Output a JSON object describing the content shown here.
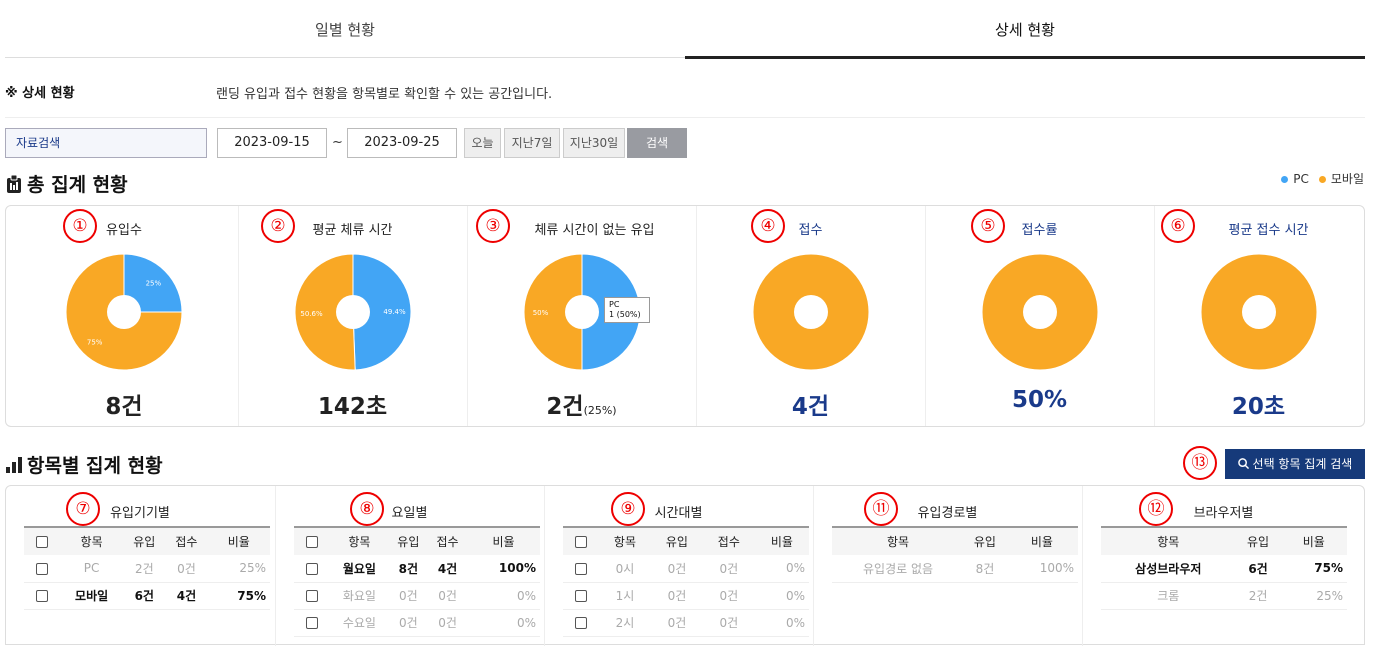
{
  "tabs": [
    "일별 현황",
    "상세 현황"
  ],
  "desc": {
    "title": "※ 상세 현황",
    "text": "랜딩 유입과 접수 현황을 항목별로 확인할 수 있는 공간입니다."
  },
  "search": {
    "value": "자료검색",
    "date_from": "2023-09-15",
    "tilde": "~",
    "date_to": "2023-09-25",
    "quick": [
      "오늘",
      "지난7일",
      "지난30일"
    ],
    "button": "검색"
  },
  "summary": {
    "title": "총 집계 현황",
    "legend": [
      {
        "label": "PC",
        "color": "#42a5f5"
      },
      {
        "label": "모바일",
        "color": "#f9a825"
      }
    ],
    "cards": [
      {
        "num": "①",
        "title": "유입수",
        "value": "8건",
        "suffix": ""
      },
      {
        "num": "②",
        "title": "평균 체류 시간",
        "value": "142초",
        "suffix": ""
      },
      {
        "num": "③",
        "title": "체류 시간이 없는 유입",
        "value": "2건",
        "suffix": "(25%)"
      },
      {
        "num": "④",
        "title": "접수",
        "value": "4건",
        "suffix": ""
      },
      {
        "num": "⑤",
        "title": "접수률",
        "value": "50%",
        "suffix": ""
      },
      {
        "num": "⑥",
        "title": "평균 접수 시간",
        "value": "20초",
        "suffix": ""
      }
    ],
    "tooltip": {
      "line1": "PC",
      "line2": "1 (50%)"
    }
  },
  "chart_data": [
    {
      "type": "pie",
      "title": "유입수",
      "categories": [
        "PC",
        "모바일"
      ],
      "values": [
        25,
        75
      ],
      "labels": [
        "25%",
        "75%"
      ]
    },
    {
      "type": "pie",
      "title": "평균 체류 시간",
      "categories": [
        "PC",
        "모바일"
      ],
      "values": [
        49.4,
        50.6
      ],
      "labels": [
        "49.4%",
        "50.6%"
      ]
    },
    {
      "type": "pie",
      "title": "체류 시간이 없는 유입",
      "categories": [
        "PC",
        "모바일"
      ],
      "values": [
        50,
        50
      ],
      "labels": [
        "",
        "50%"
      ]
    },
    {
      "type": "pie",
      "title": "접수",
      "categories": [
        "PC",
        "모바일"
      ],
      "values": [
        0,
        100
      ],
      "labels": [
        "",
        ""
      ]
    },
    {
      "type": "pie",
      "title": "접수률",
      "categories": [
        "PC",
        "모바일"
      ],
      "values": [
        0,
        100
      ],
      "labels": [
        "",
        ""
      ]
    },
    {
      "type": "pie",
      "title": "평균 접수 시간",
      "categories": [
        "PC",
        "모바일"
      ],
      "values": [
        0,
        100
      ],
      "labels": [
        "",
        ""
      ]
    }
  ],
  "detail": {
    "title": "항목별 집계 현황",
    "agg_button": "선택 항목 집계 검색",
    "agg_num": "⑬",
    "blocks": [
      {
        "num": "⑦",
        "title": "유입기기별",
        "headers": [
          "",
          "항목",
          "유입",
          "접수",
          "비율"
        ],
        "rows": [
          [
            "PC",
            "2건",
            "0건",
            "25%"
          ],
          [
            "모바일",
            "6건",
            "4건",
            "75%"
          ]
        ]
      },
      {
        "num": "⑧",
        "title": "요일별",
        "headers": [
          "",
          "항목",
          "유입",
          "접수",
          "비율"
        ],
        "rows": [
          [
            "월요일",
            "8건",
            "4건",
            "100%"
          ],
          [
            "화요일",
            "0건",
            "0건",
            "0%"
          ],
          [
            "수요일",
            "0건",
            "0건",
            "0%"
          ]
        ]
      },
      {
        "num": "⑨",
        "title": "시간대별",
        "headers": [
          "",
          "항목",
          "유입",
          "접수",
          "비율"
        ],
        "rows": [
          [
            "0시",
            "0건",
            "0건",
            "0%"
          ],
          [
            "1시",
            "0건",
            "0건",
            "0%"
          ],
          [
            "2시",
            "0건",
            "0건",
            "0%"
          ]
        ]
      },
      {
        "num": "⑪",
        "title": "유입경로별",
        "headers": [
          "항목",
          "유입",
          "비율"
        ],
        "rows": [
          [
            "유입경로 없음",
            "8건",
            "100%"
          ]
        ]
      },
      {
        "num": "⑫",
        "title": "브라우저별",
        "headers": [
          "항목",
          "유입",
          "비율"
        ],
        "rows": [
          [
            "삼성브라우저",
            "6건",
            "75%"
          ],
          [
            "크롬",
            "2건",
            "25%"
          ]
        ]
      }
    ]
  }
}
